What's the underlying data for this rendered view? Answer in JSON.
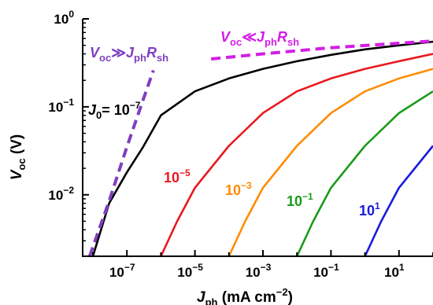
{
  "chart_data": {
    "type": "line",
    "xlabel": {
      "main": "J",
      "sub": "ph",
      "unit": " (mA cm",
      "sup": "−2",
      "close": ")"
    },
    "ylabel": {
      "main": "V",
      "sub": "oc",
      "unit": " (V)"
    },
    "xscale": "log",
    "yscale": "log",
    "xlim": [
      5e-09,
      100
    ],
    "ylim": [
      0.002,
      1
    ],
    "xticks": [
      {
        "value": 1e-07,
        "base": "10",
        "exp": "−7"
      },
      {
        "value": 1e-05,
        "base": "10",
        "exp": "−5"
      },
      {
        "value": 0.001,
        "base": "10",
        "exp": "−3"
      },
      {
        "value": 0.1,
        "base": "10",
        "exp": "−1"
      },
      {
        "value": 10,
        "base": "10",
        "exp": "1"
      }
    ],
    "yticks": [
      {
        "value": 1,
        "base": "10",
        "exp": "0"
      },
      {
        "value": 0.1,
        "base": "10",
        "exp": "−1"
      },
      {
        "value": 0.01,
        "base": "10",
        "exp": "−2"
      }
    ],
    "series": [
      {
        "name": "J0 = 1e-7",
        "color": "#000000",
        "x": [
          1e-08,
          3e-08,
          1e-07,
          3e-07,
          1e-06,
          1e-05,
          0.0001,
          0.001,
          0.01,
          0.1,
          1,
          10,
          100
        ],
        "y": [
          0.002,
          0.008,
          0.018,
          0.035,
          0.08,
          0.15,
          0.21,
          0.27,
          0.33,
          0.39,
          0.45,
          0.5,
          0.55
        ]
      },
      {
        "name": "1e-5",
        "color": "#e8191f",
        "x": [
          1e-06,
          3e-06,
          1e-05,
          0.0001,
          0.001,
          0.01,
          0.1,
          1,
          10,
          100
        ],
        "y": [
          0.002,
          0.005,
          0.012,
          0.036,
          0.085,
          0.15,
          0.21,
          0.27,
          0.33,
          0.4
        ]
      },
      {
        "name": "1e-3",
        "color": "#ff8c00",
        "x": [
          0.0001,
          0.0003,
          0.001,
          0.01,
          0.1,
          1,
          10,
          100
        ],
        "y": [
          0.002,
          0.005,
          0.012,
          0.036,
          0.085,
          0.15,
          0.21,
          0.27
        ]
      },
      {
        "name": "1e-1",
        "color": "#1a9b1a",
        "x": [
          0.01,
          0.03,
          0.1,
          1,
          10,
          100
        ],
        "y": [
          0.002,
          0.005,
          0.012,
          0.036,
          0.085,
          0.15
        ]
      },
      {
        "name": "1e1",
        "color": "#1a1adc",
        "x": [
          1,
          3,
          10,
          100
        ],
        "y": [
          0.002,
          0.005,
          0.012,
          0.036
        ]
      },
      {
        "name": "Voc >> Jph Rsh",
        "color": "#7f3fbf",
        "dash": true,
        "x": [
          8e-09,
          3e-08,
          1e-07,
          3e-07,
          6e-07
        ],
        "y": [
          0.002,
          0.0085,
          0.035,
          0.12,
          0.26
        ]
      },
      {
        "name": "Voc << Jph Rsh",
        "color": "#d21ee6",
        "dash": true,
        "x": [
          3e-05,
          0.001,
          0.1,
          100
        ],
        "y": [
          0.35,
          0.4,
          0.47,
          0.56
        ]
      }
    ],
    "annotations": [
      {
        "id": "j0",
        "color": "#000000",
        "parts": [
          {
            "t": "J",
            "style": "italic"
          },
          {
            "t": "0",
            "style": "sub"
          },
          {
            "t": "= 10",
            "style": "normal"
          },
          {
            "t": "−7",
            "style": "sup"
          }
        ]
      },
      {
        "id": "c5",
        "color": "#e8191f",
        "parts": [
          {
            "t": "10",
            "style": "normal"
          },
          {
            "t": "−5",
            "style": "sup"
          }
        ]
      },
      {
        "id": "c3",
        "color": "#ff8c00",
        "parts": [
          {
            "t": "10",
            "style": "normal"
          },
          {
            "t": "−3",
            "style": "sup"
          }
        ]
      },
      {
        "id": "c1",
        "color": "#1a9b1a",
        "parts": [
          {
            "t": "10",
            "style": "normal"
          },
          {
            "t": "−1",
            "style": "sup"
          }
        ]
      },
      {
        "id": "cp1",
        "color": "#1a1adc",
        "parts": [
          {
            "t": "10",
            "style": "normal"
          },
          {
            "t": "1",
            "style": "sup"
          }
        ]
      },
      {
        "id": "left-limit",
        "color": "#7f3fbf",
        "parts": [
          {
            "t": "V",
            "style": "italic"
          },
          {
            "t": "oc",
            "style": "sub"
          },
          {
            "t": "≫",
            "style": "normal"
          },
          {
            "t": "J",
            "style": "italic"
          },
          {
            "t": "ph",
            "style": "sub"
          },
          {
            "t": "R",
            "style": "italic"
          },
          {
            "t": "sh",
            "style": "sub"
          }
        ]
      },
      {
        "id": "right-limit",
        "color": "#d21ee6",
        "parts": [
          {
            "t": "V",
            "style": "italic"
          },
          {
            "t": "oc",
            "style": "sub"
          },
          {
            "t": "≪",
            "style": "normal"
          },
          {
            "t": "J",
            "style": "italic"
          },
          {
            "t": "ph",
            "style": "sub"
          },
          {
            "t": "R",
            "style": "italic"
          },
          {
            "t": "sh",
            "style": "sub"
          }
        ]
      }
    ]
  }
}
